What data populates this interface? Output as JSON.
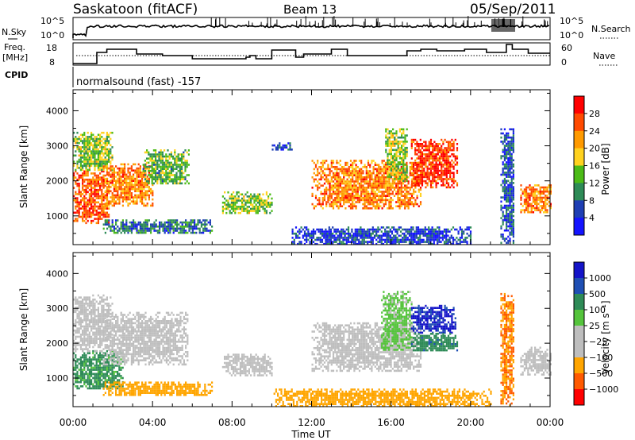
{
  "header": {
    "station": "Saskatoon (fitACF)",
    "beam": "Beam 13",
    "date": "05/Sep/2011"
  },
  "noise_panel": {
    "left_label": "N.Sky",
    "right_label": "N.Search",
    "left_ticks": [
      "10^5",
      "10^0"
    ],
    "right_ticks": [
      "10^5",
      "10^0"
    ]
  },
  "freq_panel": {
    "label_line1": "Freq.",
    "label_line2": "[MHz]",
    "left_ticks": [
      "18",
      "8"
    ],
    "right_ticks": [
      "60",
      "0"
    ],
    "right_label": "Nave"
  },
  "cpid_panel": {
    "label": "CPID",
    "program": "normalsound (fast) -157"
  },
  "colors": {
    "power": [
      "#1414ff",
      "#1f3fb4",
      "#2e8b57",
      "#4cbb17",
      "#ffd21f",
      "#ff9a00",
      "#ff4a00",
      "#ff0000"
    ],
    "velocity": [
      "#ff0000",
      "#ff5a00",
      "#ffa500",
      "#bebebe",
      "#bebebe",
      "#55c43c",
      "#2e8b57",
      "#1f4fb4",
      "#1414c8"
    ]
  },
  "chart_data": [
    {
      "type": "heatmap",
      "quantity": "power",
      "ylabel": "Slant Range [km]",
      "xlabel": "Time UT",
      "xlim_hours": [
        0,
        24
      ],
      "ylim_km": [
        180,
        4600
      ],
      "y_ticks": [
        1000,
        2000,
        3000,
        4000
      ],
      "x_tick_labels": [
        "00:00",
        "04:00",
        "08:00",
        "12:00",
        "16:00",
        "20:00",
        "00:00"
      ],
      "colorbar": {
        "label": "Power [dB]",
        "ticks": [
          "4",
          "8",
          "12",
          "16",
          "20",
          "24",
          "28"
        ],
        "range": [
          0,
          30
        ]
      },
      "regions": [
        {
          "t_start": 0.0,
          "t_end": 1.8,
          "range_start": 800,
          "range_end": 2300,
          "power_db": 24
        },
        {
          "t_start": 0.0,
          "t_end": 2.0,
          "range_start": 2300,
          "range_end": 3400,
          "power_db": 14
        },
        {
          "t_start": 1.5,
          "t_end": 4.0,
          "range_start": 1300,
          "range_end": 2500,
          "power_db": 22
        },
        {
          "t_start": 3.5,
          "t_end": 5.8,
          "range_start": 1900,
          "range_end": 2900,
          "power_db": 12
        },
        {
          "t_start": 1.5,
          "t_end": 7.0,
          "range_start": 500,
          "range_end": 900,
          "power_db": 8
        },
        {
          "t_start": 7.5,
          "t_end": 10.0,
          "range_start": 1100,
          "range_end": 1700,
          "power_db": 14
        },
        {
          "t_start": 10.0,
          "t_end": 11.0,
          "range_start": 2900,
          "range_end": 3100,
          "power_db": 6
        },
        {
          "t_start": 11.0,
          "t_end": 20.0,
          "range_start": 200,
          "range_end": 700,
          "power_db": 5
        },
        {
          "t_start": 12.0,
          "t_end": 17.5,
          "range_start": 1200,
          "range_end": 2600,
          "power_db": 22
        },
        {
          "t_start": 15.7,
          "t_end": 16.8,
          "range_start": 2000,
          "range_end": 3500,
          "power_db": 14
        },
        {
          "t_start": 17.0,
          "t_end": 19.3,
          "range_start": 1800,
          "range_end": 3200,
          "power_db": 26
        },
        {
          "t_start": 21.5,
          "t_end": 22.2,
          "range_start": 200,
          "range_end": 3500,
          "power_db": 6
        },
        {
          "t_start": 22.5,
          "t_end": 24.0,
          "range_start": 1100,
          "range_end": 1900,
          "power_db": 22
        }
      ]
    },
    {
      "type": "heatmap",
      "quantity": "velocity",
      "ylabel": "Slant Range [km]",
      "xlabel": "Time UT",
      "xlim_hours": [
        0,
        24
      ],
      "ylim_km": [
        180,
        4600
      ],
      "y_ticks": [
        1000,
        2000,
        3000,
        4000
      ],
      "x_tick_labels": [
        "00:00",
        "04:00",
        "08:00",
        "12:00",
        "16:00",
        "20:00",
        "00:00"
      ],
      "colorbar": {
        "label": "Velocity [m s⁻¹]",
        "ticks": [
          "1000",
          "500",
          "100",
          "25",
          "−25",
          "−100",
          "−500",
          "−1000"
        ],
        "range": [
          -1000,
          1000
        ]
      },
      "regions": [
        {
          "t_start": 0.0,
          "t_end": 2.5,
          "range_start": 700,
          "range_end": 1800,
          "velocity_ms": 200
        },
        {
          "t_start": 0.0,
          "t_end": 2.0,
          "range_start": 1800,
          "range_end": 3400,
          "velocity_ms": 0
        },
        {
          "t_start": 1.5,
          "t_end": 5.8,
          "range_start": 1400,
          "range_end": 2900,
          "velocity_ms": 0
        },
        {
          "t_start": 1.5,
          "t_end": 7.0,
          "range_start": 500,
          "range_end": 900,
          "velocity_ms": -200
        },
        {
          "t_start": 7.5,
          "t_end": 10.0,
          "range_start": 1100,
          "range_end": 1700,
          "velocity_ms": 0
        },
        {
          "t_start": 10.0,
          "t_end": 21.0,
          "range_start": 200,
          "range_end": 700,
          "velocity_ms": -150
        },
        {
          "t_start": 12.0,
          "t_end": 17.5,
          "range_start": 1200,
          "range_end": 2600,
          "velocity_ms": 0
        },
        {
          "t_start": 15.5,
          "t_end": 17.0,
          "range_start": 1800,
          "range_end": 3500,
          "velocity_ms": 80
        },
        {
          "t_start": 17.0,
          "t_end": 19.2,
          "range_start": 2300,
          "range_end": 3100,
          "velocity_ms": 800
        },
        {
          "t_start": 17.0,
          "t_end": 19.3,
          "range_start": 1800,
          "range_end": 2300,
          "velocity_ms": 300
        },
        {
          "t_start": 21.5,
          "t_end": 22.2,
          "range_start": 200,
          "range_end": 3500,
          "velocity_ms": -300
        },
        {
          "t_start": 22.5,
          "t_end": 24.0,
          "range_start": 1100,
          "range_end": 1900,
          "velocity_ms": 0
        }
      ]
    }
  ]
}
